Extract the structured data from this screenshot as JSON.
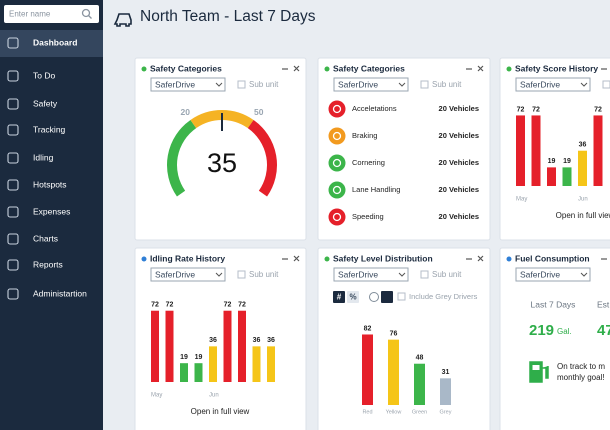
{
  "sidebar": {
    "search_placeholder": "Enter name",
    "items": [
      "Dashboard",
      "To Do",
      "Safety",
      "Tracking",
      "Idling",
      "Hotspots",
      "Expenses",
      "Charts",
      "Reports",
      "Administartion"
    ]
  },
  "header": {
    "title": "North Team - Last 7 Days"
  },
  "widgets": {
    "gauge": {
      "title": "Safety Categories",
      "dropdown": "SaferDrive",
      "checkbox": "Sub unit",
      "thresholds": [
        20,
        50
      ],
      "value": 35,
      "colors": [
        "#3cb54a",
        "#f5b324",
        "#e5202a"
      ]
    },
    "categories": {
      "title": "Safety Categories",
      "dropdown": "SaferDrive",
      "checkbox": "Sub unit",
      "rows": [
        {
          "label": "Acceletations",
          "count": "20 Vehicles",
          "color": "#e5202a"
        },
        {
          "label": "Braking",
          "count": "20 Vehicles",
          "color": "#f29a1f"
        },
        {
          "label": "Cornering",
          "count": "20 Vehicles",
          "color": "#3cb54a"
        },
        {
          "label": "Lane Handling",
          "count": "20 Vehicles",
          "color": "#3cb54a"
        },
        {
          "label": "Speeding",
          "count": "20 Vehicles",
          "color": "#e5202a"
        }
      ]
    },
    "score_history": {
      "title": "Safety Score History",
      "dropdown": "SaferDrive",
      "checkbox": "Sub unit",
      "values": [
        72,
        72,
        19,
        19,
        36,
        72
      ],
      "colors": [
        "#e5202a",
        "#e5202a",
        "#e5202a",
        "#3cb54a",
        "#f5c518",
        "#e5202a"
      ],
      "months": [
        "May",
        "Jun"
      ],
      "link": "Open in full view"
    },
    "idling": {
      "title": "Idling Rate History",
      "dropdown": "SaferDrive",
      "checkbox": "Sub unit",
      "values": [
        72,
        72,
        19,
        19,
        36,
        72,
        72,
        36,
        36
      ],
      "colors": [
        "#e5202a",
        "#e5202a",
        "#3cb54a",
        "#3cb54a",
        "#f5c518",
        "#e5202a",
        "#e5202a",
        "#f5c518",
        "#f5c518"
      ],
      "months": [
        "May",
        "Jun"
      ],
      "link": "Open in full view"
    },
    "level": {
      "title": "Safety Level Distribution",
      "dropdown": "SaferDrive",
      "checkbox": "Sub unit",
      "toggle": [
        "#",
        "%"
      ],
      "grey_checkbox": "Include Grey Drivers",
      "categories": [
        "Red",
        "Yellow",
        "Green",
        "Grey"
      ],
      "values": [
        82,
        76,
        48,
        31
      ],
      "colors": [
        "#e5202a",
        "#f5c518",
        "#3cb54a",
        "#a9b8c8"
      ]
    },
    "fuel": {
      "title": "Fuel Consumption",
      "dropdown": "SaferDrive",
      "period": "Last 7 Days",
      "value": 219,
      "unit": "Gal.",
      "est_label": "Est.",
      "est_value": 47,
      "message": [
        "On track to m",
        "monthly goal!"
      ]
    }
  }
}
